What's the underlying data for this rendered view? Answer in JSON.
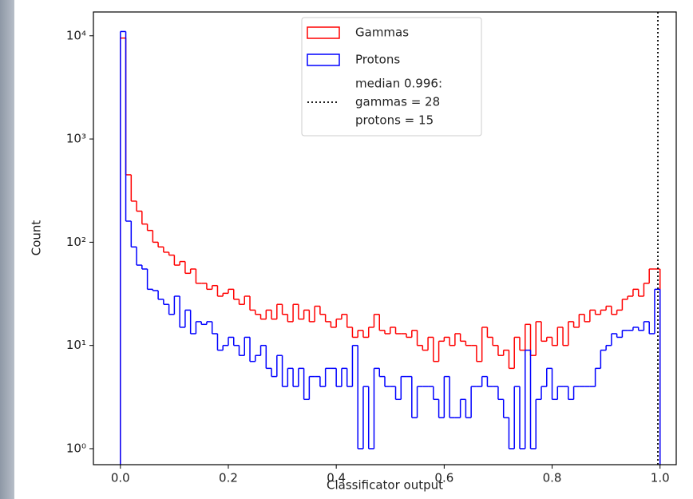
{
  "chart_data": {
    "type": "histogram",
    "x_label": "Classificator output",
    "y_label": "Count",
    "y_scale": "log",
    "legend": "upper center",
    "bins": [
      0,
      0.01,
      0.02,
      0.03,
      0.04,
      0.05,
      0.06,
      0.07,
      0.08,
      0.09,
      0.1,
      0.11,
      0.12,
      0.13,
      0.14,
      0.15,
      0.16,
      0.17,
      0.18,
      0.19,
      0.2,
      0.21,
      0.22,
      0.23,
      0.24,
      0.25,
      0.26,
      0.27,
      0.28,
      0.29,
      0.3,
      0.31,
      0.32,
      0.33,
      0.34,
      0.35,
      0.36,
      0.37,
      0.38,
      0.39,
      0.4,
      0.41,
      0.42,
      0.43,
      0.44,
      0.45,
      0.46,
      0.47,
      0.48,
      0.49,
      0.5,
      0.51,
      0.52,
      0.53,
      0.54,
      0.55,
      0.56,
      0.57,
      0.58,
      0.59,
      0.6,
      0.61,
      0.62,
      0.63,
      0.64,
      0.65,
      0.66,
      0.67,
      0.68,
      0.69,
      0.7,
      0.71,
      0.72,
      0.73,
      0.74,
      0.75,
      0.76,
      0.77,
      0.78,
      0.79,
      0.8,
      0.81,
      0.82,
      0.83,
      0.84,
      0.85,
      0.86,
      0.87,
      0.88,
      0.89,
      0.9,
      0.91,
      0.92,
      0.93,
      0.94,
      0.95,
      0.96,
      0.97,
      0.98,
      0.99,
      1
    ],
    "series": [
      {
        "name": "Gammas",
        "color": "#ff0000",
        "values": [
          9500,
          450,
          250,
          200,
          150,
          130,
          100,
          90,
          80,
          75,
          60,
          65,
          50,
          55,
          40,
          40,
          35,
          38,
          30,
          32,
          35,
          28,
          25,
          30,
          22,
          20,
          18,
          22,
          18,
          25,
          20,
          17,
          25,
          18,
          22,
          17,
          24,
          20,
          17,
          15,
          18,
          20,
          15,
          12,
          14,
          12,
          15,
          20,
          14,
          13,
          15,
          13,
          13,
          12,
          14,
          10,
          9,
          12,
          7,
          11,
          12,
          10,
          13,
          11,
          10,
          10,
          7,
          15,
          12,
          10,
          8,
          9,
          6,
          12,
          9,
          16,
          8,
          17,
          11,
          12,
          10,
          15,
          10,
          17,
          15,
          20,
          17,
          22,
          20,
          22,
          24,
          20,
          22,
          28,
          30,
          35,
          30,
          40,
          55,
          55
        ]
      },
      {
        "name": "Protons",
        "color": "#0000ff",
        "values": [
          11000,
          160,
          90,
          60,
          55,
          35,
          34,
          28,
          25,
          20,
          30,
          15,
          22,
          13,
          17,
          16,
          17,
          13,
          9,
          10,
          12,
          10,
          8,
          12,
          7,
          8,
          10,
          6,
          5,
          8,
          4,
          6,
          4,
          6,
          3,
          5,
          5,
          4,
          6,
          6,
          4,
          6,
          4,
          10,
          1,
          4,
          1,
          6,
          5,
          4,
          4,
          3,
          5,
          5,
          2,
          4,
          4,
          4,
          3,
          2,
          5,
          2,
          2,
          3,
          2,
          4,
          4,
          5,
          4,
          4,
          3,
          2,
          1,
          4,
          1,
          9,
          1,
          3,
          4,
          6,
          3,
          4,
          4,
          3,
          4,
          4,
          4,
          4,
          6,
          9,
          10,
          13,
          12,
          14,
          14,
          15,
          14,
          17,
          13,
          35
        ]
      }
    ],
    "median_line": {
      "x": 0.996,
      "label": [
        "median 0.996:",
        "gammas = 28",
        "protons = 15"
      ]
    },
    "xlim": [
      -0.05,
      1.03
    ],
    "ylim": [
      0.7,
      17000
    ],
    "xticks": [
      {
        "value": 0,
        "label": "0.0"
      },
      0.2,
      0.4,
      0.6,
      0.8,
      {
        "value": 1,
        "label": "1.0"
      }
    ],
    "yticks": [
      {
        "value": 1,
        "label": "10⁰"
      },
      {
        "value": 10,
        "label": "10¹"
      },
      {
        "value": 100,
        "label": "10²"
      },
      {
        "value": 1000,
        "label": "10³"
      },
      {
        "value": 10000,
        "label": "10⁴"
      }
    ]
  }
}
